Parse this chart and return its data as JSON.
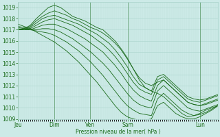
{
  "xlabel": "Pression niveau de la mer( hPa )",
  "background_color": "#cceae7",
  "grid_color_major": "#aad4cc",
  "grid_color_minor": "#bbddd8",
  "line_color": "#1a6b1a",
  "ylim": [
    1009,
    1019.5
  ],
  "yticks": [
    1009,
    1010,
    1011,
    1012,
    1013,
    1014,
    1015,
    1016,
    1017,
    1018,
    1019
  ],
  "day_labels": [
    "Jeu",
    "Dim",
    "Ven",
    "Sam",
    "Lun"
  ],
  "day_positions": [
    0.0,
    0.18,
    0.36,
    0.55,
    0.91
  ],
  "xlim": [
    0.0,
    1.0
  ],
  "series": [
    [
      1017.0,
      1017.1,
      1017.4,
      1018.0,
      1018.5,
      1019.0,
      1019.2,
      1019.0,
      1018.6,
      1018.2,
      1018.0,
      1017.8,
      1017.5,
      1017.2,
      1017.0,
      1016.5,
      1016.0,
      1015.3,
      1014.5,
      1013.5,
      1012.5,
      1011.8,
      1011.5,
      1011.3,
      1011.0,
      1010.5,
      1010.0,
      1009.5,
      1009.2,
      1009.3,
      1009.5,
      1009.8,
      1010.0,
      1010.2
    ],
    [
      1017.0,
      1017.1,
      1017.3,
      1017.8,
      1018.2,
      1018.5,
      1018.7,
      1018.5,
      1018.3,
      1018.0,
      1017.8,
      1017.5,
      1017.2,
      1017.0,
      1016.7,
      1016.3,
      1015.8,
      1015.2,
      1014.4,
      1013.5,
      1012.7,
      1012.2,
      1012.0,
      1012.3,
      1012.5,
      1012.0,
      1011.5,
      1011.0,
      1010.5,
      1010.3,
      1010.2,
      1010.3,
      1010.5,
      1010.7
    ],
    [
      1017.0,
      1017.0,
      1017.2,
      1017.6,
      1018.0,
      1018.2,
      1018.3,
      1018.1,
      1017.9,
      1017.7,
      1017.5,
      1017.2,
      1016.9,
      1016.6,
      1016.2,
      1015.8,
      1015.2,
      1014.5,
      1013.7,
      1012.8,
      1012.1,
      1011.8,
      1011.5,
      1012.8,
      1013.0,
      1012.5,
      1012.0,
      1011.5,
      1011.0,
      1010.8,
      1010.7,
      1010.8,
      1011.0,
      1011.2
    ],
    [
      1017.0,
      1017.0,
      1017.1,
      1017.4,
      1017.7,
      1017.9,
      1018.0,
      1017.8,
      1017.6,
      1017.4,
      1017.1,
      1016.8,
      1016.5,
      1016.1,
      1015.7,
      1015.2,
      1014.6,
      1013.9,
      1013.1,
      1012.3,
      1011.7,
      1011.4,
      1011.2,
      1012.5,
      1012.8,
      1012.3,
      1011.8,
      1011.3,
      1010.8,
      1010.6,
      1010.5,
      1010.7,
      1010.9,
      1011.1
    ],
    [
      1017.1,
      1017.0,
      1017.0,
      1017.2,
      1017.4,
      1017.5,
      1017.5,
      1017.3,
      1017.1,
      1016.8,
      1016.5,
      1016.2,
      1015.8,
      1015.4,
      1015.0,
      1014.4,
      1013.8,
      1013.1,
      1012.3,
      1011.6,
      1011.1,
      1010.8,
      1010.6,
      1012.0,
      1012.5,
      1012.0,
      1011.5,
      1011.0,
      1010.5,
      1010.3,
      1010.2,
      1010.4,
      1010.6,
      1010.8
    ],
    [
      1017.2,
      1017.1,
      1017.0,
      1017.0,
      1017.1,
      1017.1,
      1017.0,
      1016.8,
      1016.5,
      1016.2,
      1015.8,
      1015.4,
      1015.0,
      1014.5,
      1014.0,
      1013.4,
      1012.7,
      1012.0,
      1011.3,
      1010.7,
      1010.3,
      1010.1,
      1010.0,
      1011.5,
      1012.0,
      1011.5,
      1011.0,
      1010.5,
      1010.0,
      1009.8,
      1009.7,
      1009.9,
      1010.1,
      1010.3
    ],
    [
      1017.3,
      1017.2,
      1017.0,
      1016.9,
      1016.8,
      1016.7,
      1016.5,
      1016.2,
      1015.9,
      1015.5,
      1015.1,
      1014.6,
      1014.1,
      1013.5,
      1012.9,
      1012.2,
      1011.5,
      1010.8,
      1010.2,
      1009.8,
      1009.5,
      1009.4,
      1009.3,
      1010.8,
      1011.3,
      1010.8,
      1010.3,
      1009.8,
      1009.5,
      1009.3,
      1009.4,
      1009.6,
      1009.9,
      1010.2
    ],
    [
      1017.5,
      1017.3,
      1017.1,
      1016.8,
      1016.5,
      1016.2,
      1015.9,
      1015.5,
      1015.1,
      1014.6,
      1014.1,
      1013.5,
      1012.9,
      1012.3,
      1011.6,
      1010.9,
      1010.2,
      1009.6,
      1009.2,
      1009.0,
      1008.9,
      1008.9,
      1009.0,
      1010.2,
      1010.5,
      1010.0,
      1009.5,
      1009.2,
      1009.0,
      1009.0,
      1009.2,
      1009.5,
      1009.8,
      1010.2
    ]
  ]
}
